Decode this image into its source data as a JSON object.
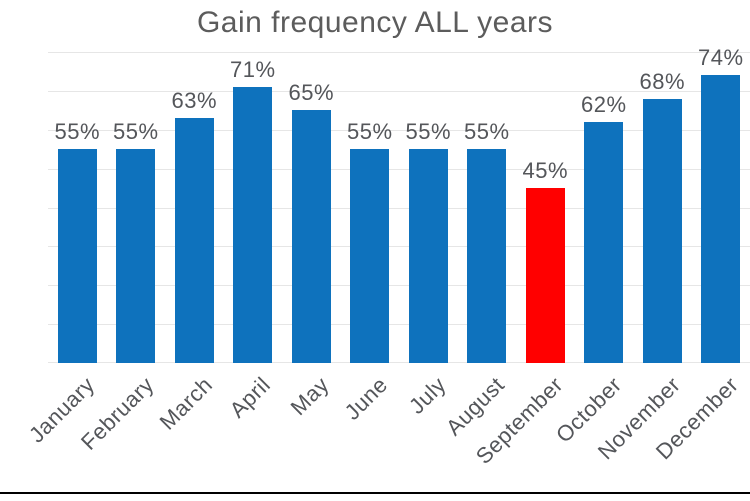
{
  "chart_data": {
    "type": "bar",
    "title": "Gain frequency ALL years",
    "categories": [
      "January",
      "February",
      "March",
      "April",
      "May",
      "June",
      "July",
      "August",
      "September",
      "October",
      "November",
      "December"
    ],
    "values": [
      55,
      55,
      63,
      71,
      65,
      55,
      55,
      55,
      45,
      62,
      68,
      74
    ],
    "value_labels": [
      "55%",
      "55%",
      "63%",
      "71%",
      "65%",
      "55%",
      "55%",
      "55%",
      "45%",
      "62%",
      "68%",
      "74%"
    ],
    "highlight_index": 8,
    "xlabel": "",
    "ylabel": "",
    "ylim": [
      0,
      80
    ],
    "grid": "horizontal gridlines every 10%, no y-axis tick labels",
    "legend_position": "none",
    "x_label_rotation_deg": -45,
    "colors": {
      "bar": "#0e72bd",
      "highlight_bar": "#ff0000",
      "grid_line": "#e6e6e6",
      "title_text": "#5c5c5c",
      "label_text": "#54565a",
      "background": "#ffffff",
      "bottom_edge": "#000000"
    }
  }
}
